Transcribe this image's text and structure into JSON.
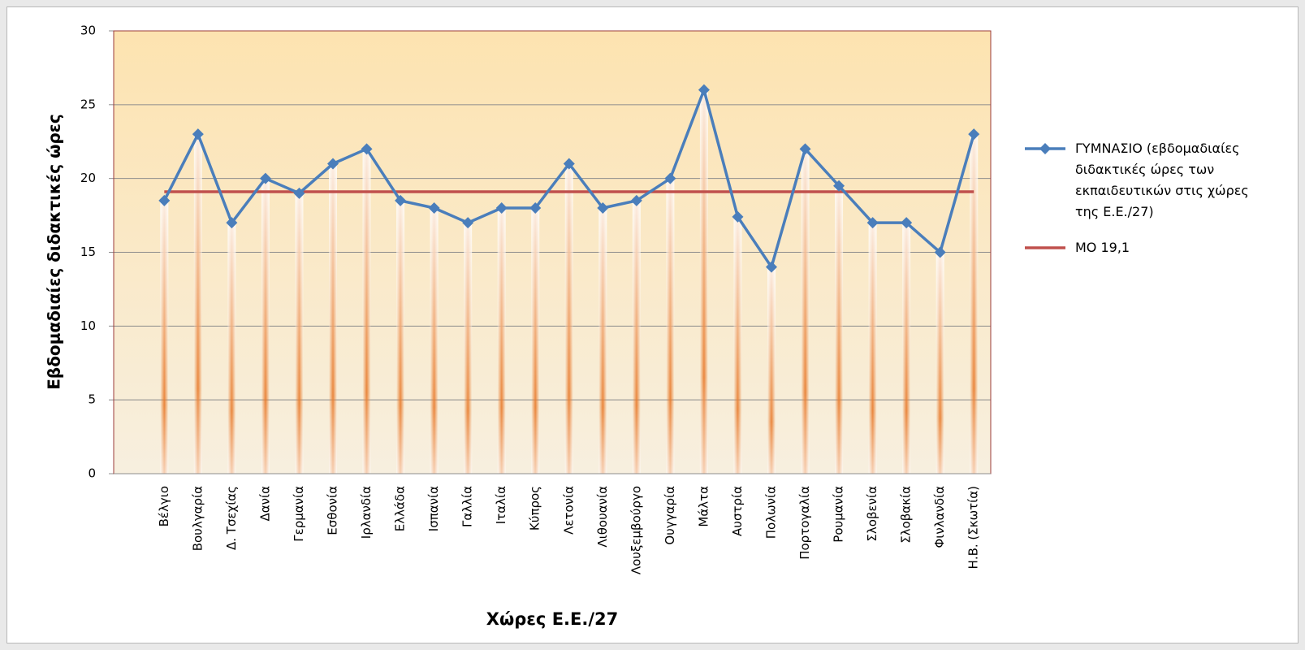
{
  "chart_data": {
    "type": "line",
    "y_label": "Εβδομαδιαίες διδακτικές ώρες",
    "x_label": "Χώρες Ε.Ε./27",
    "categories": [
      null,
      "Βέλγιο",
      "Βουλγαρία",
      "Δ. Τσεχίας",
      "Δανία",
      "Γερμανία",
      "Εσθονία",
      "Ιρλανδία",
      "Ελλάδα",
      "Ισπανία",
      "Γαλλία",
      "Ιταλία",
      "Κύπρος",
      "Λετονία",
      "Λιθουανία",
      "Λουξεμβούργο",
      "Ουγγαρία",
      "Μάλτα",
      "Αυστρία",
      "Πολωνία",
      "Πορτογαλία",
      "Ρουμανία",
      "Σλοβενία",
      "Σλοβακία",
      "Φινλανδία",
      "Η.Β. (Σκωτία)"
    ],
    "series": [
      {
        "name": "ΓΥΜΝΑΣΙΟ (εβδομαδιαίες διδακτικές ώρες των εκπαιδευτικών στις χώρες της Ε.Ε./27)",
        "color": "#4a7ebb",
        "marker": "diamond",
        "values": [
          null,
          18.5,
          23,
          17,
          20,
          19,
          21,
          22,
          18.5,
          18,
          17,
          18,
          18,
          21,
          18,
          18.5,
          20,
          26,
          17.4,
          14,
          22,
          19.5,
          17,
          17,
          15,
          23
        ]
      },
      {
        "name": "ΜΟ 19,1",
        "color": "#c0504d",
        "marker": "none",
        "values": [
          null,
          19.1,
          19.1,
          19.1,
          19.1,
          19.1,
          19.1,
          19.1,
          19.1,
          19.1,
          19.1,
          19.1,
          19.1,
          19.1,
          19.1,
          19.1,
          19.1,
          19.1,
          19.1,
          19.1,
          19.1,
          19.1,
          19.1,
          19.1,
          19.1,
          19.1
        ]
      }
    ],
    "ylim": [
      0,
      30
    ],
    "yticks": [
      0,
      5,
      10,
      15,
      20,
      25,
      30
    ],
    "grid": true,
    "drop_lines": true,
    "legend": "right"
  }
}
